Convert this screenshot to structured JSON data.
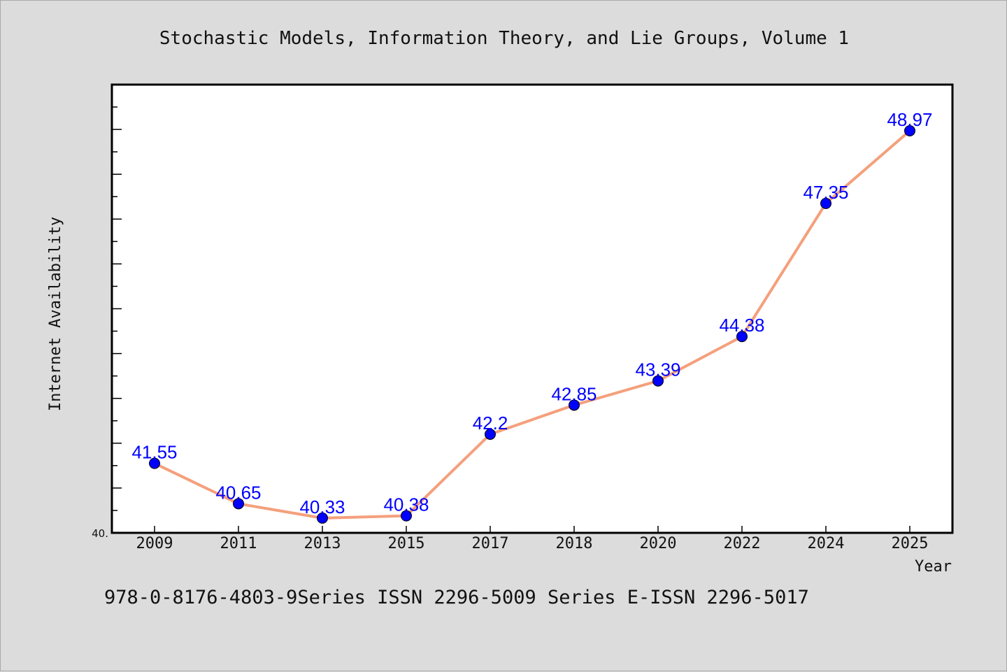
{
  "colors": {
    "background": "#dcdcdc",
    "plot_background": "#ffffff",
    "line": "#f4a07c",
    "marker": "#0000ff",
    "data_label": "#0000ff"
  },
  "footer_note": "978-0-8176-4803-9Series ISSN 2296-5009 Series E-ISSN 2296-5017",
  "chart_data": {
    "type": "line",
    "title": "Stochastic Models, Information Theory, and Lie Groups, Volume 1",
    "xlabel": "Year",
    "ylabel": "Internet Availability",
    "y_min_label": "40.",
    "categories": [
      "2009",
      "2011",
      "2013",
      "2015",
      "2017",
      "2018",
      "2020",
      "2022",
      "2024",
      "2025"
    ],
    "series": [
      {
        "values": [
          41.55,
          40.65,
          40.33,
          40.38,
          42.2,
          42.85,
          43.39,
          44.38,
          47.35,
          48.97
        ],
        "labels": [
          "41.55",
          "40.65",
          "40.33",
          "40.38",
          "42.2",
          "42.85",
          "43.39",
          "44.38",
          "47.35",
          "48.97"
        ]
      }
    ],
    "ylim": [
      40.0,
      50.0
    ],
    "grid": false,
    "legend": false
  }
}
